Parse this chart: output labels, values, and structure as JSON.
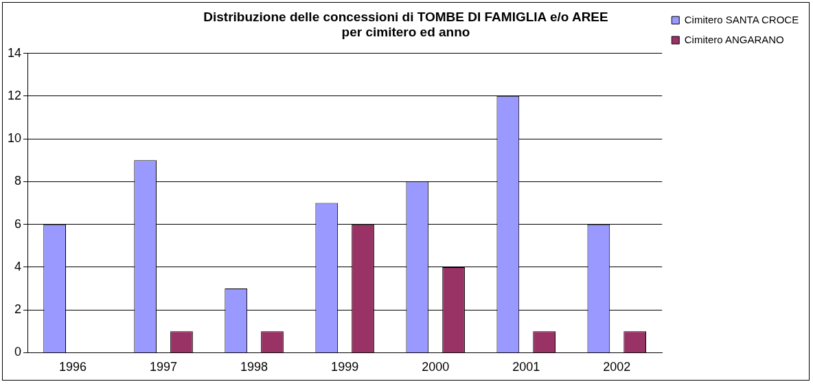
{
  "chart_data": {
    "type": "bar",
    "title": "Distribuzione delle concessioni di TOMBE DI FAMIGLIA e/o AREE\nper cimitero ed anno",
    "categories": [
      "1996",
      "1997",
      "1998",
      "1999",
      "2000",
      "2001",
      "2002"
    ],
    "series": [
      {
        "name": "Cimitero SANTA CROCE",
        "color": "#9999ff",
        "values": [
          6,
          9,
          3,
          7,
          8,
          12,
          6
        ]
      },
      {
        "name": "Cimitero ANGARANO",
        "color": "#993366",
        "values": [
          0,
          1,
          1,
          6,
          4,
          1,
          1
        ]
      }
    ],
    "ylim": [
      0,
      14
    ],
    "yticks": [
      0,
      2,
      4,
      6,
      8,
      10,
      12,
      14
    ],
    "grid": "y",
    "legend": "right"
  }
}
